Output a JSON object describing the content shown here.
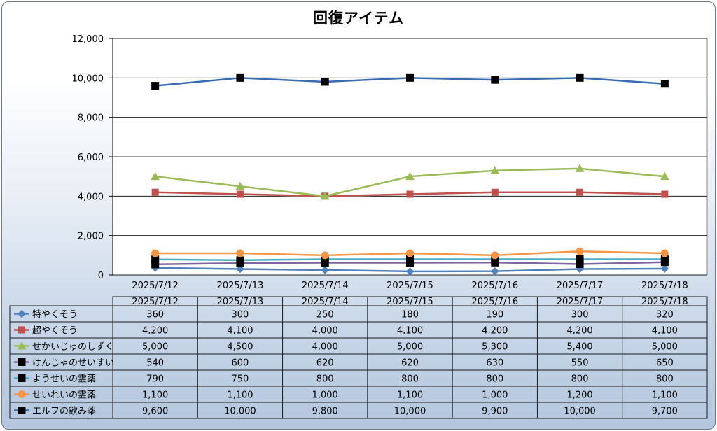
{
  "chart_data": {
    "type": "line",
    "title": "回復アイテム",
    "categories": [
      "2025/7/12",
      "2025/7/13",
      "2025/7/14",
      "2025/7/15",
      "2025/7/16",
      "2025/7/17",
      "2025/7/18"
    ],
    "ylim": [
      0,
      12000
    ],
    "yticks": [
      "0",
      "2,000",
      "4,000",
      "6,000",
      "8,000",
      "10,000",
      "12,000"
    ],
    "ytick_values": [
      0,
      2000,
      4000,
      6000,
      8000,
      10000,
      12000
    ],
    "grid": true,
    "legend_placement": "data-table-left",
    "series": [
      {
        "name": "特やくそう",
        "color": "#4f81bd",
        "marker": "diamond",
        "values": [
          360,
          300,
          250,
          180,
          190,
          300,
          320
        ],
        "labels": [
          "360",
          "300",
          "250",
          "180",
          "190",
          "300",
          "320"
        ]
      },
      {
        "name": "超やくそう",
        "color": "#c0504d",
        "marker": "square",
        "values": [
          4200,
          4100,
          4000,
          4100,
          4200,
          4200,
          4100
        ],
        "labels": [
          "4,200",
          "4,100",
          "4,000",
          "4,100",
          "4,200",
          "4,200",
          "4,100"
        ]
      },
      {
        "name": "せかいじゅのしずく",
        "color": "#9bbb59",
        "marker": "triangle",
        "values": [
          5000,
          4500,
          4000,
          5000,
          5300,
          5400,
          5000
        ],
        "labels": [
          "5,000",
          "4,500",
          "4,000",
          "5,000",
          "5,300",
          "5,400",
          "5,000"
        ]
      },
      {
        "name": "けんじゃのせいすい",
        "color": "#8064a2",
        "marker": "blacksquare",
        "values": [
          540,
          600,
          620,
          620,
          630,
          550,
          650
        ],
        "labels": [
          "540",
          "600",
          "620",
          "620",
          "630",
          "550",
          "650"
        ]
      },
      {
        "name": "ようせいの霊薬",
        "color": "#4bacc6",
        "marker": "blacksquare",
        "values": [
          790,
          750,
          800,
          800,
          800,
          800,
          800
        ],
        "labels": [
          "790",
          "750",
          "800",
          "800",
          "800",
          "800",
          "800"
        ]
      },
      {
        "name": "せいれいの霊薬",
        "color": "#f79646",
        "marker": "circle",
        "values": [
          1100,
          1100,
          1000,
          1100,
          1000,
          1200,
          1100
        ],
        "labels": [
          "1,100",
          "1,100",
          "1,000",
          "1,100",
          "1,000",
          "1,200",
          "1,100"
        ]
      },
      {
        "name": "エルフの飲み薬",
        "color": "#3a6bb0",
        "marker": "blacksquare",
        "values": [
          9600,
          10000,
          9800,
          10000,
          9900,
          10000,
          9700
        ],
        "labels": [
          "9,600",
          "10,000",
          "9,800",
          "10,000",
          "9,900",
          "10,000",
          "9,700"
        ]
      }
    ]
  }
}
